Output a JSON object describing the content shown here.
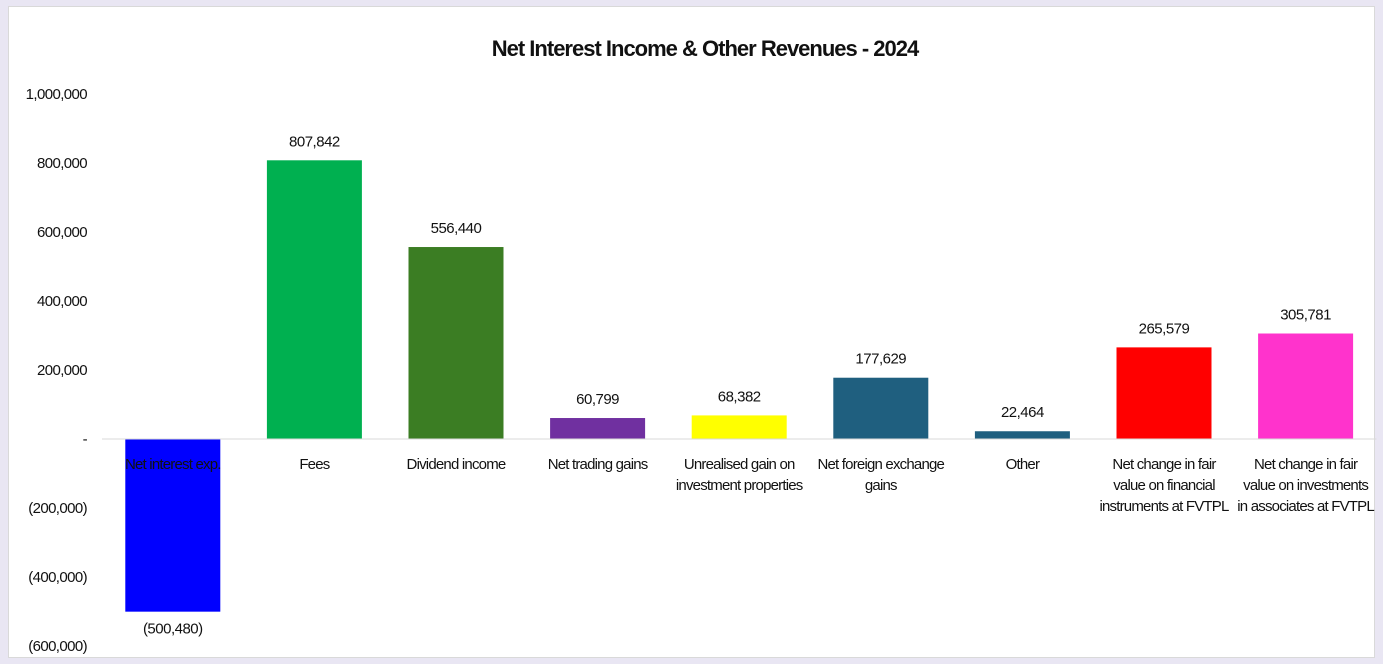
{
  "chart_data": {
    "type": "bar",
    "title": "Net Interest Income & Other Revenues - 2024",
    "categories": [
      "Net interest exp.",
      "Fees",
      "Dividend income",
      "Net trading gains",
      "Unrealised gain on investment properties",
      "Net foreign exchange gains",
      "Other",
      "Net change in fair value on financial instruments at FVTPL",
      "Net change in fair value on investments in associates at FVTPL"
    ],
    "category_lines": [
      [
        "Net interest exp."
      ],
      [
        "Fees"
      ],
      [
        "Dividend income"
      ],
      [
        "Net trading gains"
      ],
      [
        "Unrealised gain on",
        "investment properties"
      ],
      [
        "Net foreign exchange",
        "gains"
      ],
      [
        "Other"
      ],
      [
        "Net change in fair",
        "value on financial",
        "instruments at FVTPL"
      ],
      [
        "Net change in fair",
        "value on investments",
        "in associates at FVTPL"
      ]
    ],
    "values": [
      -500480,
      807842,
      556440,
      60799,
      68382,
      177629,
      22464,
      265579,
      305781
    ],
    "data_labels": [
      "(500,480)",
      "807,842",
      "556,440",
      "60,799",
      "68,382",
      "177,629",
      "22,464",
      "265,579",
      "305,781"
    ],
    "colors": [
      "#0000ff",
      "#00b050",
      "#3b7d23",
      "#7030a0",
      "#ffff00",
      "#1f5f7f",
      "#1f5f7f",
      "#ff0000",
      "#ff33cc"
    ],
    "ylim": [
      -600000,
      1000000
    ],
    "yticks": [
      1000000,
      800000,
      600000,
      400000,
      200000,
      0,
      -200000,
      -400000,
      -600000
    ],
    "ytick_labels": [
      "1,000,000",
      "800,000",
      "600,000",
      "400,000",
      "200,000",
      "-",
      "(200,000)",
      "(400,000)",
      "(600,000)"
    ],
    "xlabel": "",
    "ylabel": "",
    "grid": false,
    "legend": "none"
  }
}
